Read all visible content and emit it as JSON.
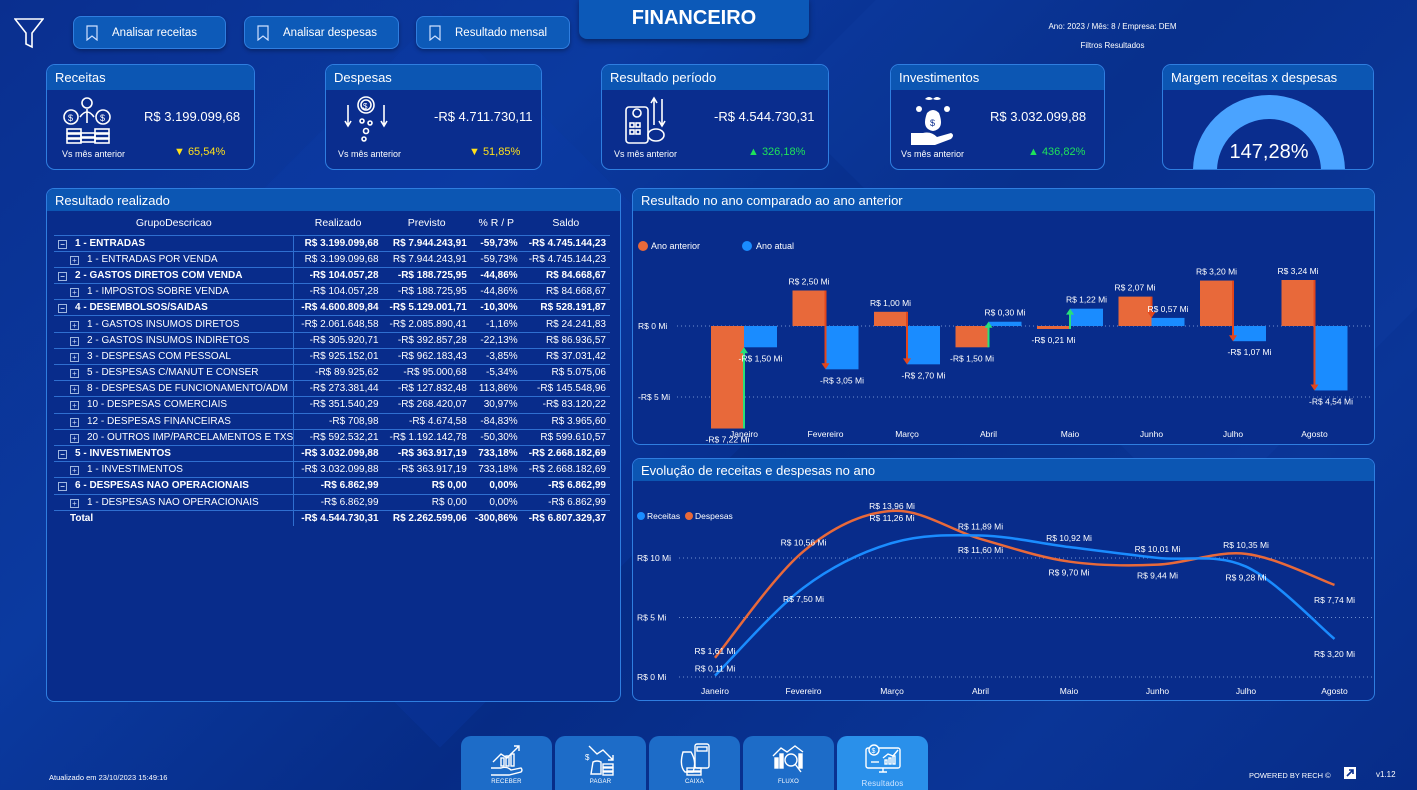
{
  "header": {
    "title": "FINANCEIRO",
    "filter_info": "Ano: 2023 / Mês: 8 / Empresa: DEM",
    "filter_label": "Filtros Resultados",
    "bookmarks": [
      {
        "label": "Analisar receitas"
      },
      {
        "label": "Analisar despesas"
      },
      {
        "label": "Resultado mensal"
      }
    ]
  },
  "kpis": {
    "receitas": {
      "title": "Receitas",
      "value": "R$ 3.199.099,68",
      "compare_label": "Vs mês anterior",
      "delta": "▼ 65,54%",
      "direction": "down"
    },
    "despesas": {
      "title": "Despesas",
      "value": "-R$ 4.711.730,11",
      "compare_label": "Vs mês anterior",
      "delta": "▼ 51,85%",
      "direction": "down"
    },
    "resultado": {
      "title": "Resultado período",
      "value": "-R$ 4.544.730,31",
      "compare_label": "Vs mês anterior",
      "delta": "▲ 326,18%",
      "direction": "up"
    },
    "investimentos": {
      "title": "Investimentos",
      "value": "R$ 3.032.099,88",
      "compare_label": "Vs mês anterior",
      "delta": "▲ 436,82%",
      "direction": "up"
    },
    "margem": {
      "title": "Margem receitas x despesas",
      "value": "147,28%",
      "gauge_color": "#4aa3ff"
    }
  },
  "table": {
    "title": "Resultado realizado",
    "columns": [
      "GrupoDescricao",
      "Realizado",
      "Previsto",
      "% R / P",
      "Saldo"
    ],
    "rows": [
      {
        "level": 0,
        "desc": "1 - ENTRADAS",
        "realizado": "R$ 3.199.099,68",
        "previsto": "R$ 7.944.243,91",
        "pct": "-59,73%",
        "saldo": "-R$ 4.745.144,23"
      },
      {
        "level": 1,
        "desc": "1 - ENTRADAS POR VENDA",
        "realizado": "R$ 3.199.099,68",
        "previsto": "R$ 7.944.243,91",
        "pct": "-59,73%",
        "saldo": "-R$ 4.745.144,23"
      },
      {
        "level": 0,
        "desc": "2 - GASTOS DIRETOS COM VENDA",
        "realizado": "-R$ 104.057,28",
        "previsto": "-R$ 188.725,95",
        "pct": "-44,86%",
        "saldo": "R$ 84.668,67"
      },
      {
        "level": 1,
        "desc": "1 - IMPOSTOS SOBRE VENDA",
        "realizado": "-R$ 104.057,28",
        "previsto": "-R$ 188.725,95",
        "pct": "-44,86%",
        "saldo": "R$ 84.668,67"
      },
      {
        "level": 0,
        "desc": "4 - DESEMBOLSOS/SAIDAS",
        "realizado": "-R$ 4.600.809,84",
        "previsto": "-R$ 5.129.001,71",
        "pct": "-10,30%",
        "saldo": "R$ 528.191,87"
      },
      {
        "level": 1,
        "desc": "1 - GASTOS INSUMOS DIRETOS",
        "realizado": "-R$ 2.061.648,58",
        "previsto": "-R$ 2.085.890,41",
        "pct": "-1,16%",
        "saldo": "R$ 24.241,83"
      },
      {
        "level": 1,
        "desc": "2 - GASTOS INSUMOS INDIRETOS",
        "realizado": "-R$ 305.920,71",
        "previsto": "-R$ 392.857,28",
        "pct": "-22,13%",
        "saldo": "R$ 86.936,57"
      },
      {
        "level": 1,
        "desc": "3 - DESPESAS COM PESSOAL",
        "realizado": "-R$ 925.152,01",
        "previsto": "-R$ 962.183,43",
        "pct": "-3,85%",
        "saldo": "R$ 37.031,42"
      },
      {
        "level": 1,
        "desc": "5 - DESPESAS C/MANUT E CONSER",
        "realizado": "-R$ 89.925,62",
        "previsto": "-R$ 95.000,68",
        "pct": "-5,34%",
        "saldo": "R$ 5.075,06"
      },
      {
        "level": 1,
        "desc": "8 - DESPESAS DE FUNCIONAMENTO/ADM",
        "realizado": "-R$ 273.381,44",
        "previsto": "-R$ 127.832,48",
        "pct": "113,86%",
        "saldo": "-R$ 145.548,96"
      },
      {
        "level": 1,
        "desc": "10 - DESPESAS COMERCIAIS",
        "realizado": "-R$ 351.540,29",
        "previsto": "-R$ 268.420,07",
        "pct": "30,97%",
        "saldo": "-R$ 83.120,22"
      },
      {
        "level": 1,
        "desc": "12 - DESPESAS FINANCEIRAS",
        "realizado": "-R$ 708,98",
        "previsto": "-R$ 4.674,58",
        "pct": "-84,83%",
        "saldo": "R$ 3.965,60"
      },
      {
        "level": 1,
        "desc": "20 - OUTROS IMP/PARCELAMENTOS E TXS",
        "realizado": "-R$ 592.532,21",
        "previsto": "-R$ 1.192.142,78",
        "pct": "-50,30%",
        "saldo": "R$ 599.610,57"
      },
      {
        "level": 0,
        "desc": "5 - INVESTIMENTOS",
        "realizado": "-R$ 3.032.099,88",
        "previsto": "-R$ 363.917,19",
        "pct": "733,18%",
        "saldo": "-R$ 2.668.182,69"
      },
      {
        "level": 1,
        "desc": "1 - INVESTIMENTOS",
        "realizado": "-R$ 3.032.099,88",
        "previsto": "-R$ 363.917,19",
        "pct": "733,18%",
        "saldo": "-R$ 2.668.182,69"
      },
      {
        "level": 0,
        "desc": "6 - DESPESAS NAO OPERACIONAIS",
        "realizado": "-R$ 6.862,99",
        "previsto": "R$ 0,00",
        "pct": "0,00%",
        "saldo": "-R$ 6.862,99"
      },
      {
        "level": 1,
        "desc": "1 - DESPESAS NAO OPERACIONAIS",
        "realizado": "-R$ 6.862,99",
        "previsto": "R$ 0,00",
        "pct": "0,00%",
        "saldo": "-R$ 6.862,99"
      }
    ],
    "total": {
      "desc": "Total",
      "realizado": "-R$ 4.544.730,31",
      "previsto": "R$ 2.262.599,06",
      "pct": "-300,86%",
      "saldo": "-R$ 6.807.329,37"
    }
  },
  "chart_data": [
    {
      "type": "bar",
      "title": "Resultado no ano comparado ao ano anterior",
      "categories": [
        "Janeiro",
        "Fevereiro",
        "Março",
        "Abril",
        "Maio",
        "Junho",
        "Julho",
        "Agosto"
      ],
      "series": [
        {
          "name": "Ano  anterior",
          "color": "#e8693a",
          "values": [
            -7.22,
            2.5,
            1.0,
            -1.5,
            -0.21,
            2.07,
            3.2,
            3.24
          ]
        },
        {
          "name": "Ano atual",
          "color": "#1a8cff",
          "values": [
            -1.5,
            -3.05,
            -2.7,
            0.3,
            1.22,
            0.57,
            -1.07,
            -4.54
          ]
        }
      ],
      "data_labels": {
        "anterior": [
          "-R$ 7,22 Mi",
          "R$ 2,50 Mi",
          "R$ 1,00 Mi",
          "-R$ 1,50 Mi",
          "-R$ 0,21 Mi",
          "R$ 2,07 Mi",
          "R$ 3,20 Mi",
          "R$ 3,24 Mi"
        ],
        "atual": [
          "-R$ 1,50 Mi",
          "-R$ 3,05 Mi",
          "-R$ 2,70 Mi",
          "R$ 0,30 Mi",
          "R$ 1,22 Mi",
          "R$ 0,57 Mi",
          "-R$ 1,07 Mi",
          "-R$ 4,54 Mi"
        ]
      },
      "y_ticks": [
        "R$ 0 Mi",
        "-R$ 5 Mi"
      ],
      "ylabel": "",
      "xlabel": "",
      "units": "R$ Mi",
      "legend_position": "top-left",
      "grid": true
    },
    {
      "type": "line",
      "title": "Evolução de receitas e despesas no ano",
      "categories": [
        "Janeiro",
        "Fevereiro",
        "Março",
        "Abril",
        "Maio",
        "Junho",
        "Julho",
        "Agosto"
      ],
      "series": [
        {
          "name": "Receitas",
          "color": "#1a8cff",
          "values": [
            0.11,
            7.5,
            11.26,
            11.89,
            10.92,
            10.01,
            9.28,
            3.2
          ]
        },
        {
          "name": "Despesas",
          "color": "#e8693a",
          "values": [
            1.61,
            10.56,
            13.96,
            11.6,
            9.7,
            9.44,
            10.35,
            7.74
          ]
        }
      ],
      "data_labels": {
        "receitas": [
          "R$ 0,11 Mi",
          "R$ 7,50 Mi",
          "R$ 11,26 Mi",
          "R$ 11,89 Mi",
          "R$ 10,92 Mi",
          "R$ 10,01 Mi",
          "R$ 9,28 Mi",
          "R$ 3,20 Mi"
        ],
        "despesas": [
          "R$ 1,61 Mi",
          "R$ 10,56 Mi",
          "R$ 13,96 Mi",
          "R$ 11,60 Mi",
          "R$ 9,70 Mi",
          "R$ 9,44 Mi",
          "R$ 10,35 Mi",
          "R$ 7,74 Mi"
        ]
      },
      "y_ticks": [
        "R$ 0 Mi",
        "R$ 5 Mi",
        "R$ 10 Mi"
      ],
      "ylim": [
        0,
        15
      ],
      "units": "R$ Mi",
      "legend_position": "top-left",
      "grid": true
    }
  ],
  "nav": [
    {
      "label": "RECEBER",
      "icon": "receivables-icon"
    },
    {
      "label": "PAGAR",
      "icon": "payables-icon"
    },
    {
      "label": "CAIXA",
      "icon": "cash-icon"
    },
    {
      "label": "FLUXO",
      "icon": "cashflow-icon"
    },
    {
      "label": "Resultados",
      "icon": "results-icon",
      "active": true
    }
  ],
  "footer": {
    "updated": "Atualizado em 23/10/2023 15:49:16",
    "powered": "POWERED BY RECH ©",
    "version": "v1.12"
  },
  "colors": {
    "background": "#0a2f8f",
    "card_header": "#0c56b3",
    "accent": "#2f7ee0",
    "orange": "#e8693a",
    "blue": "#1a8cff",
    "up": "#1ee35a",
    "down": "#ffe11a"
  }
}
